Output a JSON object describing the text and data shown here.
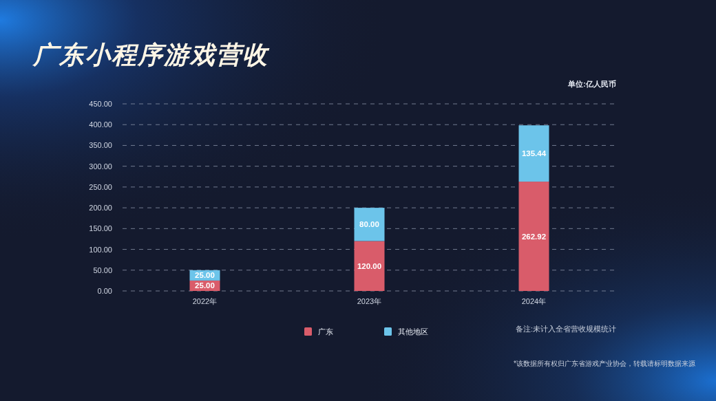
{
  "chart_data": {
    "type": "bar",
    "title": "广东小程序游戏营收",
    "ylabel": "单位:亿人民币",
    "categories": [
      "2022年",
      "2023年",
      "2024年"
    ],
    "stacked": true,
    "series": [
      {
        "name": "广东",
        "color": "#d95c6a",
        "values": [
          25,
          120,
          262.92
        ],
        "value_labels": [
          "25.00",
          "120.00",
          "262.92"
        ]
      },
      {
        "name": "其他地区",
        "color": "#6cc4ea",
        "values": [
          25,
          80,
          135.44
        ],
        "value_labels": [
          "25.00",
          "80.00",
          "135.44"
        ]
      }
    ],
    "ylim": [
      0,
      450
    ],
    "yticks": [
      {
        "value": 0,
        "label": "0.00"
      },
      {
        "value": 50,
        "label": "50.00"
      },
      {
        "value": 100,
        "label": "100.00"
      },
      {
        "value": 150,
        "label": "150.00"
      },
      {
        "value": 200,
        "label": "200.00"
      },
      {
        "value": 250,
        "label": "250.00"
      },
      {
        "value": 300,
        "label": "300.00"
      },
      {
        "value": 350,
        "label": "350.00"
      },
      {
        "value": 400,
        "label": "400.00"
      },
      {
        "value": 450,
        "label": "450.00"
      }
    ],
    "grid": "y",
    "legend": "bottom",
    "annotations": [
      "备注:未计入全省营收规模统计",
      "*该数据所有权归广东省游戏产业协会，转载请标明数据来源"
    ]
  }
}
